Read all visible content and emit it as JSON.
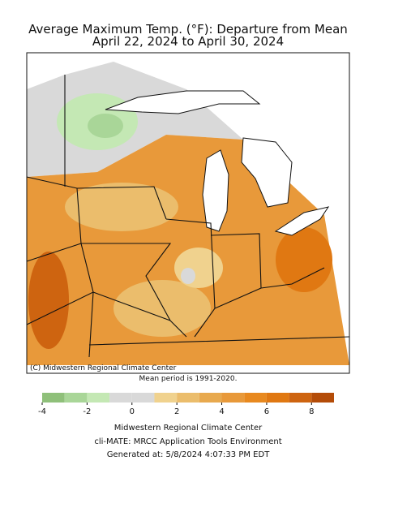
{
  "header": {
    "title": "Average Maximum Temp. (°F): Departure from Mean",
    "subtitle": "April 22, 2024 to April 30, 2024"
  },
  "map": {
    "credit": "(C) Midwestern Regional Climate Center",
    "note": "Mean period is 1991-2020."
  },
  "legend": {
    "bounds": [
      -4,
      -3,
      -2,
      -1,
      0,
      1,
      2,
      3,
      4,
      5,
      6,
      7,
      8,
      9
    ],
    "colors": [
      "#8fc07a",
      "#a9d698",
      "#c4e8b4",
      "#d9d9d9",
      "#d9d9d9",
      "#f0d28e",
      "#ebbd6c",
      "#e8a94e",
      "#e8993a",
      "#e8891f",
      "#e07812",
      "#ce6410",
      "#b44c08"
    ],
    "ticks": [
      -4,
      -2,
      0,
      2,
      4,
      6,
      8
    ]
  },
  "footer": {
    "line1": "Midwestern Regional Climate Center",
    "line2": "cli-MATE: MRCC Application Tools Environment",
    "line3": "Generated at: 5/8/2024 4:07:33 PM EDT"
  }
}
